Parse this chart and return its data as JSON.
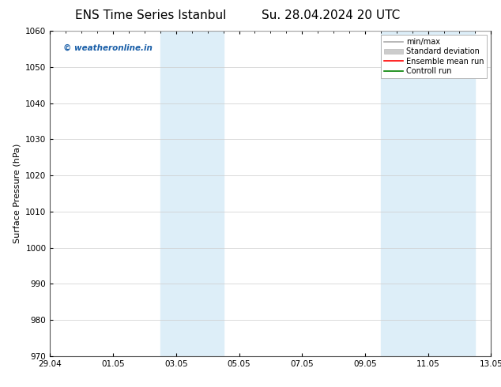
{
  "title_left": "ENS Time Series Istanbul",
  "title_right": "Su. 28.04.2024 20 UTC",
  "ylabel": "Surface Pressure (hPa)",
  "xlim_start": 0,
  "xlim_end": 14,
  "ylim": [
    970,
    1060
  ],
  "yticks": [
    970,
    980,
    990,
    1000,
    1010,
    1020,
    1030,
    1040,
    1050,
    1060
  ],
  "xtick_labels": [
    "29.04",
    "01.05",
    "03.05",
    "05.05",
    "07.05",
    "09.05",
    "11.05",
    "13.05"
  ],
  "xtick_positions": [
    0,
    2,
    4,
    6,
    8,
    10,
    12,
    14
  ],
  "shaded_bands": [
    {
      "x_start": 3.5,
      "x_end": 5.5
    },
    {
      "x_start": 10.5,
      "x_end": 13.5
    }
  ],
  "shaded_color": "#ddeef8",
  "watermark_text": "© weatheronline.in",
  "watermark_color": "#1a5fa8",
  "legend_items": [
    {
      "label": "min/max",
      "color": "#aaaaaa",
      "linestyle": "-",
      "linewidth": 1.2
    },
    {
      "label": "Standard deviation",
      "color": "#cccccc",
      "linestyle": "-",
      "linewidth": 5
    },
    {
      "label": "Ensemble mean run",
      "color": "#ff0000",
      "linestyle": "-",
      "linewidth": 1.2
    },
    {
      "label": "Controll run",
      "color": "#008000",
      "linestyle": "-",
      "linewidth": 1.2
    }
  ],
  "bg_color": "#ffffff",
  "grid_color": "#cccccc",
  "title_fontsize": 11,
  "label_fontsize": 8,
  "tick_fontsize": 7.5
}
